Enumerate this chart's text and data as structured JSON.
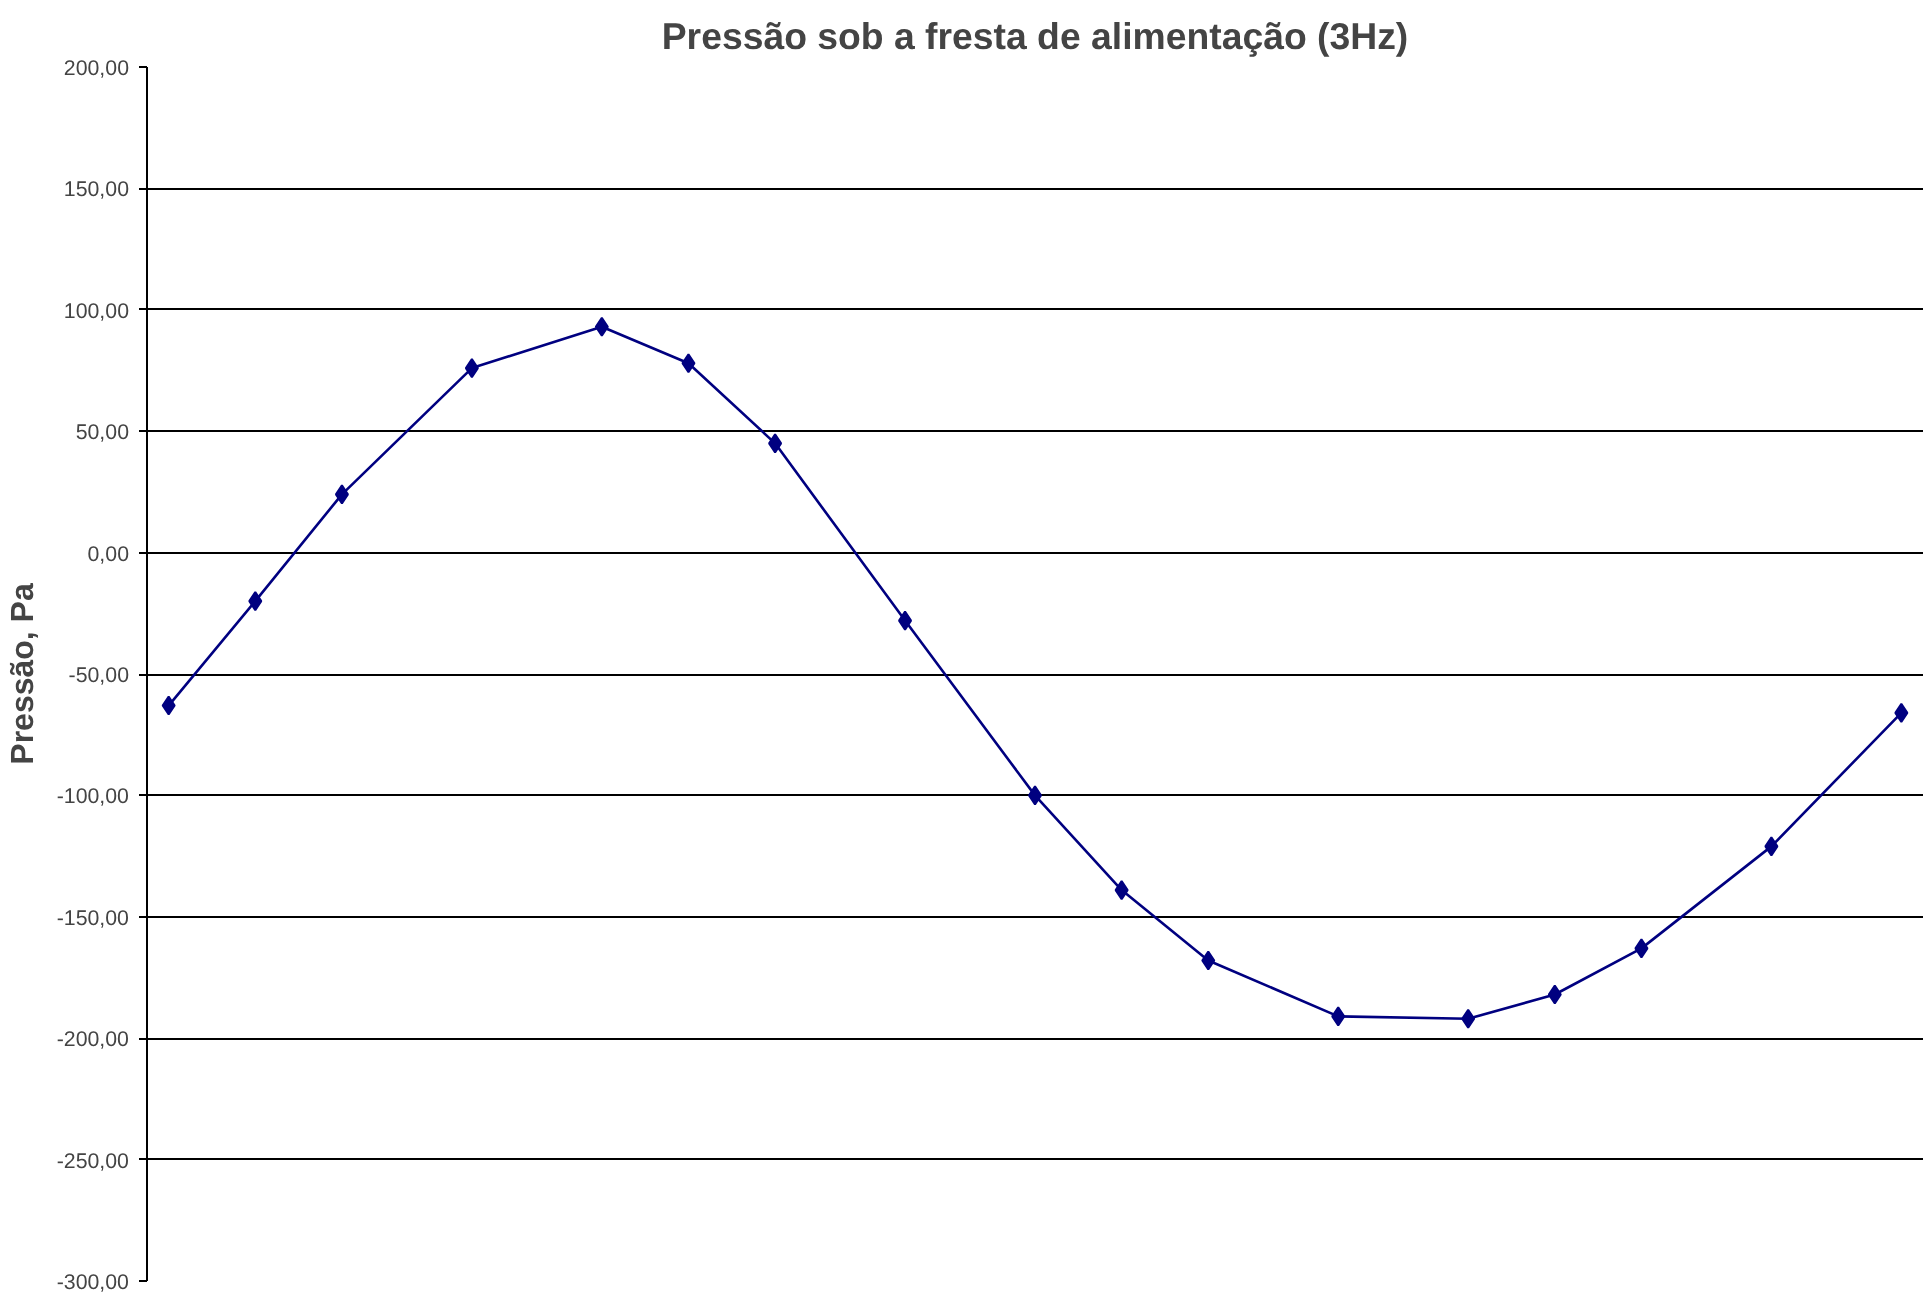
{
  "chart_data": {
    "type": "line",
    "title": "Pressão sob a fresta de alimentação (3Hz)",
    "ylabel": "Pressão, Pa",
    "categories": [
      null,
      null,
      null,
      null,
      null,
      null,
      null,
      null,
      null,
      null,
      null,
      null,
      null,
      null,
      null,
      null,
      null,
      null,
      null,
      null,
      null,
      null,
      null,
      null,
      null,
      null,
      null,
      null,
      null,
      null,
      null,
      null,
      null,
      null,
      null,
      null,
      null,
      null,
      null,
      null,
      null
    ],
    "series": [
      {
        "color": "#000080",
        "values": [
          -63,
          null,
          -20,
          null,
          24,
          null,
          null,
          76,
          null,
          null,
          93,
          null,
          78,
          null,
          45,
          null,
          null,
          -28,
          null,
          null,
          -100,
          null,
          -139,
          null,
          -168,
          null,
          null,
          -191,
          null,
          null,
          -192,
          null,
          -182,
          null,
          -163,
          null,
          null,
          -121,
          null,
          null,
          -66
        ]
      }
    ],
    "ylim": [
      -300,
      200
    ],
    "yticks": [
      {
        "value": -300,
        "label": "-300,00"
      },
      {
        "value": -250,
        "label": "-250,00"
      },
      {
        "value": -200,
        "label": "-200,00"
      },
      {
        "value": -150,
        "label": "-150,00"
      },
      {
        "value": -100,
        "label": "-100,00"
      },
      {
        "value": -50,
        "label": "-50,00"
      },
      {
        "value": 0,
        "label": "0,00"
      },
      {
        "value": 50,
        "label": "50,00"
      },
      {
        "value": 100,
        "label": "100,00"
      },
      {
        "value": 150,
        "label": "150,00"
      },
      {
        "value": 200,
        "label": "200,00"
      }
    ],
    "tick_labels": "y",
    "grid": "y",
    "marker": "diamond",
    "line_style": "solid"
  }
}
